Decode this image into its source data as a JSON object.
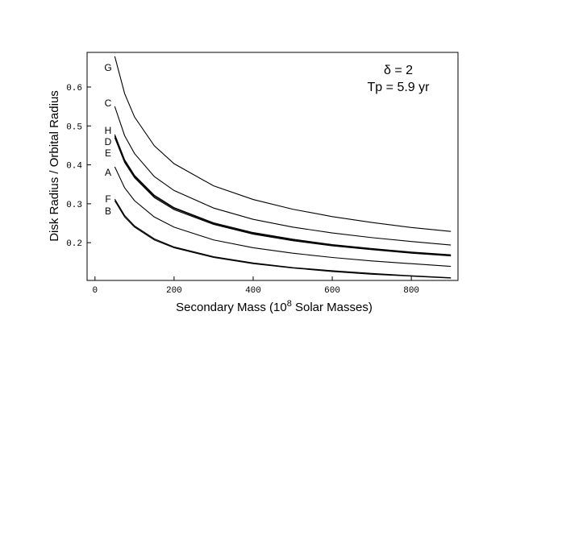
{
  "chart_data": {
    "type": "line",
    "ylabel": "Disk Radius / Orbital Radius",
    "xlabel_parts": [
      "Secondary Mass (10",
      "8",
      " Solar Masses)"
    ],
    "annotations": [
      "δ = 2",
      "Tp = 5.9 yr"
    ],
    "x": [
      50,
      75,
      100,
      150,
      200,
      300,
      400,
      500,
      600,
      700,
      800,
      900
    ],
    "series": [
      {
        "name": "G",
        "color": "#000000",
        "values": [
          0.679,
          0.583,
          0.523,
          0.449,
          0.403,
          0.346,
          0.311,
          0.286,
          0.267,
          0.252,
          0.239,
          0.229
        ]
      },
      {
        "name": "C",
        "color": "#000000",
        "values": [
          0.55,
          0.475,
          0.429,
          0.37,
          0.334,
          0.289,
          0.26,
          0.24,
          0.225,
          0.213,
          0.203,
          0.194
        ]
      },
      {
        "name": "H",
        "color": "#000000",
        "values": [
          0.478,
          0.413,
          0.373,
          0.322,
          0.29,
          0.251,
          0.226,
          0.209,
          0.195,
          0.185,
          0.176,
          0.169
        ]
      },
      {
        "name": "D",
        "color": "#000000",
        "values": [
          0.474,
          0.41,
          0.37,
          0.319,
          0.288,
          0.249,
          0.224,
          0.207,
          0.194,
          0.183,
          0.175,
          0.167
        ]
      },
      {
        "name": "E",
        "color": "#000000",
        "values": [
          0.47,
          0.406,
          0.367,
          0.316,
          0.285,
          0.247,
          0.222,
          0.205,
          0.192,
          0.182,
          0.173,
          0.166
        ]
      },
      {
        "name": "A",
        "color": "#000000",
        "values": [
          0.395,
          0.341,
          0.308,
          0.266,
          0.24,
          0.207,
          0.187,
          0.173,
          0.162,
          0.153,
          0.146,
          0.139
        ]
      },
      {
        "name": "F",
        "color": "#000000",
        "values": [
          0.312,
          0.27,
          0.243,
          0.21,
          0.189,
          0.164,
          0.148,
          0.136,
          0.128,
          0.121,
          0.115,
          0.11
        ]
      },
      {
        "name": "B",
        "color": "#000000",
        "values": [
          0.308,
          0.266,
          0.24,
          0.207,
          0.187,
          0.162,
          0.146,
          0.135,
          0.126,
          0.119,
          0.114,
          0.109
        ]
      }
    ],
    "xlim": [
      -20,
      918
    ],
    "ylim": [
      0.103,
      0.689
    ],
    "xticks": [
      0,
      200,
      400,
      600,
      800
    ],
    "yticks": [
      0.2,
      0.3,
      0.4,
      0.5,
      0.6
    ]
  }
}
